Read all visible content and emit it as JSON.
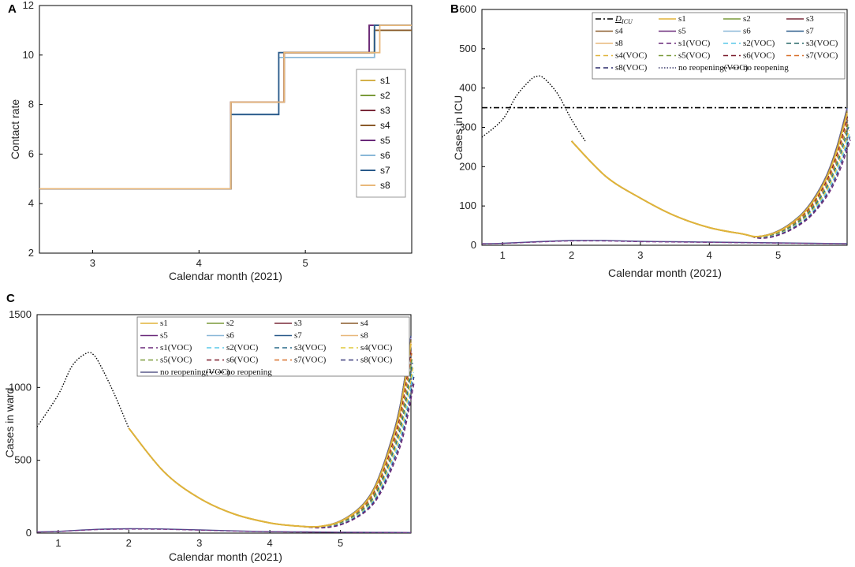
{
  "chart_data": [
    {
      "panel": "A",
      "type": "line",
      "title": "",
      "xlabel": "Calendar month (2021)",
      "ylabel": "Contact rate",
      "xlim": [
        2.5,
        6.0
      ],
      "ylim": [
        2,
        12
      ],
      "xticks": [
        3,
        4,
        5
      ],
      "yticks": [
        2,
        4,
        6,
        8,
        10,
        12
      ],
      "legend_position": "right-center",
      "series": [
        {
          "name": "s1",
          "color": "#d4b14a",
          "x": [
            2.5,
            4.3,
            4.3,
            4.8,
            4.8,
            5.65,
            5.65,
            6.0
          ],
          "y": [
            4.6,
            4.6,
            8.1,
            8.1,
            10.1,
            10.1,
            11.2,
            11.2
          ]
        },
        {
          "name": "s2",
          "color": "#7a9a3a",
          "x": [
            2.5,
            4.3,
            4.3,
            4.8,
            4.8,
            5.65,
            5.65,
            6.0
          ],
          "y": [
            4.6,
            4.6,
            8.1,
            8.1,
            10.1,
            10.1,
            11.0,
            11.0
          ]
        },
        {
          "name": "s3",
          "color": "#7a2a3a",
          "x": [
            2.5,
            4.3,
            4.3,
            4.8,
            4.8,
            5.6,
            5.6,
            6.0
          ],
          "y": [
            4.6,
            4.6,
            8.1,
            8.1,
            10.1,
            10.1,
            11.2,
            11.2
          ]
        },
        {
          "name": "s4",
          "color": "#8a5a2a",
          "x": [
            2.5,
            4.3,
            4.3,
            4.8,
            4.8,
            5.65,
            5.65,
            6.0
          ],
          "y": [
            4.6,
            4.6,
            8.1,
            8.1,
            10.1,
            10.1,
            11.0,
            11.0
          ]
        },
        {
          "name": "s5",
          "color": "#6a2a7a",
          "x": [
            2.5,
            4.3,
            4.3,
            4.8,
            4.8,
            5.6,
            5.6,
            6.0
          ],
          "y": [
            4.6,
            4.6,
            8.1,
            8.1,
            10.1,
            10.1,
            11.2,
            11.2
          ]
        },
        {
          "name": "s6",
          "color": "#8ab8d8",
          "x": [
            2.5,
            4.3,
            4.3,
            4.75,
            4.75,
            5.65,
            5.65,
            6.0
          ],
          "y": [
            4.6,
            4.6,
            7.6,
            7.6,
            9.9,
            9.9,
            11.2,
            11.2
          ]
        },
        {
          "name": "s7",
          "color": "#2a5a8a",
          "x": [
            2.5,
            4.3,
            4.3,
            4.75,
            4.75,
            5.65,
            5.65,
            6.0
          ],
          "y": [
            4.6,
            4.6,
            7.6,
            7.6,
            10.1,
            10.1,
            11.2,
            11.2
          ]
        },
        {
          "name": "s8",
          "color": "#e8b87a",
          "x": [
            2.5,
            4.3,
            4.3,
            4.8,
            4.8,
            5.7,
            5.7,
            6.0
          ],
          "y": [
            4.6,
            4.6,
            8.1,
            8.1,
            10.1,
            10.1,
            11.2,
            11.2
          ]
        }
      ]
    },
    {
      "panel": "B",
      "type": "line",
      "title": "",
      "xlabel": "Calendar month (2021)",
      "ylabel": "Cases in ICU",
      "xlim": [
        0.7,
        6.0
      ],
      "ylim": [
        0,
        600
      ],
      "xticks": [
        1,
        2,
        3,
        4,
        5
      ],
      "yticks": [
        0,
        100,
        200,
        300,
        400,
        500,
        600
      ],
      "legend_position": "top",
      "legend_columns": 4,
      "legend_entries": [
        {
          "label": "D_ICU",
          "label_main": "D",
          "label_sub": "ICU",
          "color": "#000000",
          "style": "dashdot"
        },
        {
          "label": "s1",
          "color": "#e0b43a",
          "style": "solid"
        },
        {
          "label": "s2",
          "color": "#7a9a3a",
          "style": "solid"
        },
        {
          "label": "s3",
          "color": "#7a2a3a",
          "style": "solid"
        },
        {
          "label": "s4",
          "color": "#8a5a2a",
          "style": "solid"
        },
        {
          "label": "s5",
          "color": "#6a2a7a",
          "style": "solid"
        },
        {
          "label": "s6",
          "color": "#8ab8d8",
          "style": "solid"
        },
        {
          "label": "s7",
          "color": "#2a5a8a",
          "style": "solid"
        },
        {
          "label": "s8",
          "color": "#e8b87a",
          "style": "solid"
        },
        {
          "label": "s1(VOC)",
          "color": "#6a2a7a",
          "style": "dashed"
        },
        {
          "label": "s2(VOC)",
          "color": "#5ac8e8",
          "style": "dashed"
        },
        {
          "label": "s3(VOC)",
          "color": "#2a6a6a",
          "style": "dashed"
        },
        {
          "label": "s4(VOC)",
          "color": "#e0b43a",
          "style": "dashed"
        },
        {
          "label": "s5(VOC)",
          "color": "#7a9a3a",
          "style": "dashed"
        },
        {
          "label": "s6(VOC)",
          "color": "#7a1a2a",
          "style": "dashed"
        },
        {
          "label": "s7(VOC)",
          "color": "#d8702a",
          "style": "dashed"
        },
        {
          "label": "s8(VOC)",
          "color": "#2a2a6a",
          "style": "dashed"
        },
        {
          "label": "no reopening(VOC)",
          "color": "#3a3a6a",
          "style": "dotted"
        },
        {
          "label": "no reopening",
          "color": "#000000",
          "style": "dotted"
        }
      ],
      "capacity_line": {
        "label": "D_ICU",
        "value": 350
      },
      "no_reopening": {
        "x": [
          0.7,
          1.0,
          1.2,
          1.4,
          1.5,
          1.6,
          1.8,
          2.0,
          2.2
        ],
        "y": [
          275,
          320,
          380,
          420,
          430,
          425,
          385,
          320,
          265
        ]
      },
      "main_curve": {
        "x": [
          2.0,
          2.5,
          3.0,
          3.5,
          4.0,
          4.5,
          4.7,
          5.0,
          5.3,
          5.5,
          5.7,
          5.85,
          6.0
        ],
        "y": [
          265,
          175,
          120,
          75,
          45,
          28,
          22,
          35,
          70,
          110,
          170,
          240,
          335
        ]
      },
      "low_curve": {
        "x": [
          0.7,
          1.0,
          1.5,
          2.0,
          2.5,
          3.0,
          3.5,
          4.0,
          4.5,
          5.0,
          5.5,
          6.0
        ],
        "y": [
          4,
          5,
          9,
          12,
          12,
          10,
          9,
          8,
          7,
          6,
          5,
          4
        ]
      }
    },
    {
      "panel": "C",
      "type": "line",
      "title": "",
      "xlabel": "Calendar month (2021)",
      "ylabel": "Cases in ward",
      "xlim": [
        0.7,
        6.0
      ],
      "ylim": [
        0,
        1500
      ],
      "xticks": [
        1,
        2,
        3,
        4,
        5
      ],
      "yticks": [
        0,
        500,
        1000,
        1500
      ],
      "legend_position": "top",
      "legend_columns": 4,
      "legend_entries": [
        {
          "label": "s1",
          "color": "#e0b43a",
          "style": "solid"
        },
        {
          "label": "s2",
          "color": "#7a9a3a",
          "style": "solid"
        },
        {
          "label": "s3",
          "color": "#7a2a3a",
          "style": "solid"
        },
        {
          "label": "s4",
          "color": "#8a5a2a",
          "style": "solid"
        },
        {
          "label": "s5",
          "color": "#6a2a7a",
          "style": "solid"
        },
        {
          "label": "s6",
          "color": "#8ab8d8",
          "style": "solid"
        },
        {
          "label": "s7",
          "color": "#2a5a8a",
          "style": "solid"
        },
        {
          "label": "s8",
          "color": "#e8b87a",
          "style": "solid"
        },
        {
          "label": "s1(VOC)",
          "color": "#6a2a7a",
          "style": "dashed"
        },
        {
          "label": "s2(VOC)",
          "color": "#5ac8e8",
          "style": "dashed"
        },
        {
          "label": "s3(VOC)",
          "color": "#2a6a8a",
          "style": "dashed"
        },
        {
          "label": "s4(VOC)",
          "color": "#e0c83a",
          "style": "dashed"
        },
        {
          "label": "s5(VOC)",
          "color": "#7a9a3a",
          "style": "dashed"
        },
        {
          "label": "s6(VOC)",
          "color": "#7a1a2a",
          "style": "dashed"
        },
        {
          "label": "s7(VOC)",
          "color": "#d8702a",
          "style": "dashed"
        },
        {
          "label": "s8(VOC)",
          "color": "#3a3a7a",
          "style": "dashed"
        },
        {
          "label": "no reopening(VOC)",
          "color": "#5a5a8a",
          "style": "solid"
        },
        {
          "label": "no reopening",
          "color": "#000000",
          "style": "dotted"
        }
      ],
      "no_reopening": {
        "x": [
          0.7,
          1.0,
          1.2,
          1.4,
          1.5,
          1.6,
          1.8,
          2.0
        ],
        "y": [
          730,
          950,
          1150,
          1235,
          1225,
          1150,
          950,
          720
        ]
      },
      "main_curve": {
        "x": [
          2.0,
          2.5,
          3.0,
          3.5,
          4.0,
          4.4,
          4.7,
          5.0,
          5.3,
          5.5,
          5.7,
          5.85,
          6.0
        ],
        "y": [
          720,
          420,
          240,
          130,
          70,
          48,
          45,
          80,
          180,
          320,
          580,
          850,
          1300
        ]
      },
      "low_curve": {
        "x": [
          0.7,
          1.0,
          1.5,
          2.0,
          2.5,
          3.0,
          3.5,
          4.0,
          4.5,
          5.0,
          5.5,
          6.0
        ],
        "y": [
          8,
          12,
          25,
          30,
          28,
          22,
          15,
          10,
          8,
          6,
          5,
          4
        ]
      }
    }
  ],
  "panels": {
    "A": {
      "label": "A"
    },
    "B": {
      "label": "B"
    },
    "C": {
      "label": "C"
    }
  }
}
